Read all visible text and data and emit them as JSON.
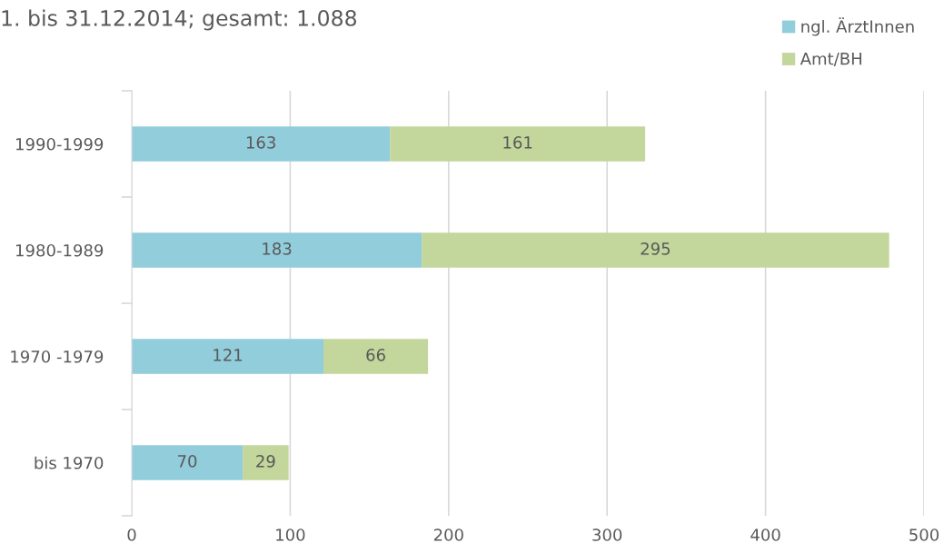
{
  "chart_data": {
    "type": "bar",
    "orientation": "horizontal",
    "stacked": true,
    "title": "1. bis 31.12.2014; gesamt: 1.088",
    "categories": [
      "1990-1999",
      "1980-1989",
      "1970 -1979",
      "bis 1970"
    ],
    "series": [
      {
        "name": "ngl. ÄrztInnen",
        "color": "#92cddc",
        "values": [
          163,
          183,
          121,
          70
        ]
      },
      {
        "name": "Amt/BH",
        "color": "#c3d69b",
        "values": [
          161,
          295,
          66,
          29
        ]
      }
    ],
    "xlim": [
      0,
      500
    ],
    "xticks": [
      0,
      100,
      200,
      300,
      400,
      500
    ],
    "grid": "x",
    "legend": "top right",
    "data_labels": true
  }
}
